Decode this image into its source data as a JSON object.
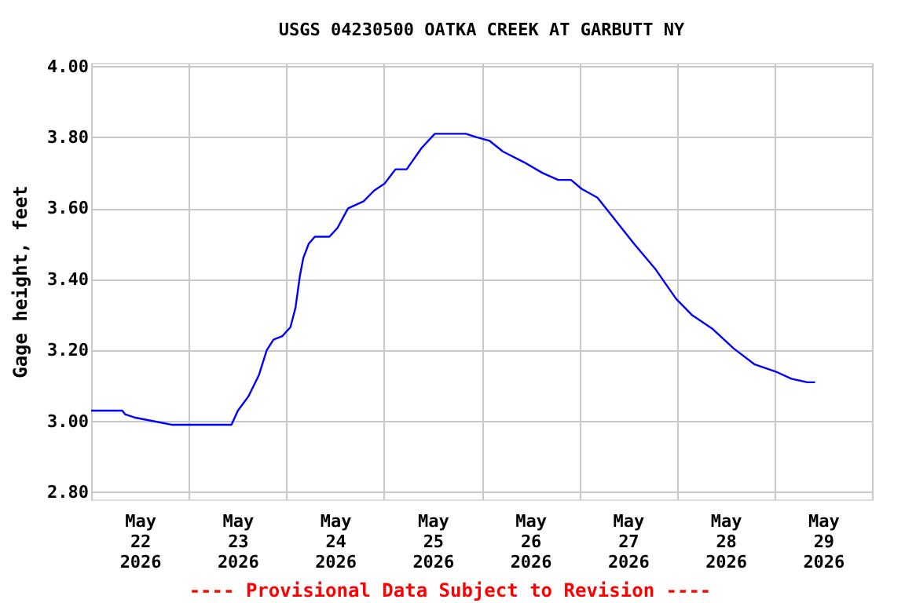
{
  "chart_data": {
    "type": "line",
    "title": "USGS 04230500 OATKA CREEK AT GARBUTT NY",
    "ylabel": "Gage height, feet",
    "x": [
      "2026-05-21T12:00",
      "2026-05-21T19:40",
      "2026-05-21T20:20",
      "2026-05-21T22:55",
      "2026-05-22T03:25",
      "2026-05-22T08:00",
      "2026-05-22T22:30",
      "2026-05-23T00:05",
      "2026-05-23T02:40",
      "2026-05-23T05:15",
      "2026-05-23T07:10",
      "2026-05-23T08:50",
      "2026-05-23T11:00",
      "2026-05-23T13:00",
      "2026-05-23T14:15",
      "2026-05-23T15:20",
      "2026-05-23T16:10",
      "2026-05-23T17:30",
      "2026-05-23T19:00",
      "2026-05-23T22:35",
      "2026-05-24T00:35",
      "2026-05-24T03:10",
      "2026-05-24T07:00",
      "2026-05-24T09:35",
      "2026-05-24T12:10",
      "2026-05-24T14:50",
      "2026-05-24T17:35",
      "2026-05-24T21:15",
      "2026-05-25T00:30",
      "2026-05-25T08:10",
      "2026-05-25T10:50",
      "2026-05-25T14:00",
      "2026-05-25T17:15",
      "2026-05-25T22:25",
      "2026-05-26T02:55",
      "2026-05-26T06:50",
      "2026-05-26T10:00",
      "2026-05-26T12:35",
      "2026-05-26T16:30",
      "2026-05-26T20:20",
      "2026-05-27T01:30",
      "2026-05-27T06:40",
      "2026-05-27T11:50",
      "2026-05-27T15:40",
      "2026-05-27T20:50",
      "2026-05-28T02:00",
      "2026-05-28T07:10",
      "2026-05-28T12:20",
      "2026-05-28T16:10",
      "2026-05-28T20:05",
      "2026-05-28T22:00"
    ],
    "series": [
      {
        "color": "#0000ff",
        "values": [
          3.03,
          3.03,
          3.02,
          3.01,
          3.0,
          2.99,
          2.99,
          3.03,
          3.07,
          3.13,
          3.2,
          3.23,
          3.24,
          3.265,
          3.32,
          3.41,
          3.46,
          3.5,
          3.52,
          3.52,
          3.545,
          3.6,
          3.62,
          3.65,
          3.67,
          3.71,
          3.71,
          3.77,
          3.81,
          3.81,
          3.8,
          3.79,
          3.76,
          3.73,
          3.7,
          3.68,
          3.68,
          3.655,
          3.63,
          3.575,
          3.5,
          3.43,
          3.345,
          3.3,
          3.26,
          3.205,
          3.16,
          3.14,
          3.12,
          3.11,
          3.11
        ]
      }
    ],
    "xlim": [
      "2026-05-21T12:00",
      "2026-05-29T12:00"
    ],
    "xticks": [
      {
        "value": "2026-05-22T00:00",
        "label": "May\n22\n2026"
      },
      {
        "value": "2026-05-23T00:00",
        "label": "May\n23\n2026"
      },
      {
        "value": "2026-05-24T00:00",
        "label": "May\n24\n2026"
      },
      {
        "value": "2026-05-25T00:00",
        "label": "May\n25\n2026"
      },
      {
        "value": "2026-05-26T00:00",
        "label": "May\n26\n2026"
      },
      {
        "value": "2026-05-27T00:00",
        "label": "May\n27\n2026"
      },
      {
        "value": "2026-05-28T00:00",
        "label": "May\n28\n2026"
      },
      {
        "value": "2026-05-29T00:00",
        "label": "May\n29\n2026"
      },
      {
        "value": "2026-05-21T12:00",
        "label": null
      },
      {
        "value": "2026-05-22T12:00",
        "label": null
      },
      {
        "value": "2026-05-23T12:00",
        "label": null
      },
      {
        "value": "2026-05-24T12:00",
        "label": null
      },
      {
        "value": "2026-05-25T12:00",
        "label": null
      },
      {
        "value": "2026-05-26T12:00",
        "label": null
      },
      {
        "value": "2026-05-27T12:00",
        "label": null
      },
      {
        "value": "2026-05-28T12:00",
        "label": null
      },
      {
        "value": "2026-05-29T12:00",
        "label": null
      }
    ],
    "ylim": [
      2.78,
      4.01
    ],
    "yticks": [
      {
        "value": 2.8,
        "label": "2.80"
      },
      {
        "value": 3.0,
        "label": "3.00"
      },
      {
        "value": 3.2,
        "label": "3.20"
      },
      {
        "value": 3.4,
        "label": "3.40"
      },
      {
        "value": 3.6,
        "label": "3.60"
      },
      {
        "value": 3.8,
        "label": "3.80"
      },
      {
        "value": 4.0,
        "label": "4.00"
      }
    ],
    "grid": true,
    "marker": "none",
    "line_style": "solid",
    "annotations": [
      "---- Provisional Data Subject to Revision ----"
    ]
  }
}
